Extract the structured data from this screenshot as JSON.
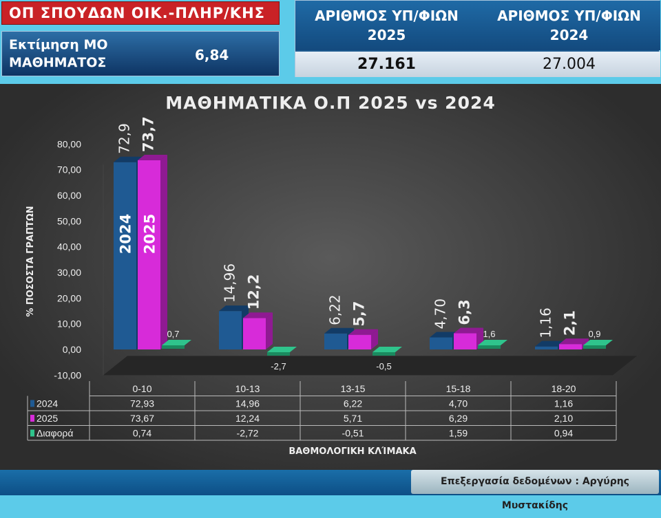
{
  "header": {
    "program": "ΟΠ ΣΠΟΥΔΩΝ ΟΙΚ.-ΠΛΗΡ/ΚΗΣ",
    "estimate_label_line1": "Εκτίμηση ΜΟ",
    "estimate_label_line2": "ΜΑΘΗΜΑΤΟΣ",
    "estimate_value": "6,84"
  },
  "counts": {
    "h2025_line1": "ΑΡΙΘΜΟΣ ΥΠ/ΦΙΩΝ",
    "h2025_line2": "2025",
    "h2024_line1": "ΑΡΙΘΜΟΣ ΥΠ/ΦΙΩΝ",
    "h2024_line2": "2024",
    "v2025": "27.161",
    "v2024": "27.004"
  },
  "footer": {
    "credit": "Επεξεργασία δεδομένων : Αργύρης Μυστακίδης"
  },
  "colors": {
    "s2024": "#1f5a93",
    "s2025": "#d72bd9",
    "diff": "#2fc48c"
  },
  "chart_data": {
    "type": "bar",
    "title": "ΜΑΘΗΜΑΤΙΚΑ Ο.Π 2025 vs 2024",
    "xlabel": "ΒΑΘΜΟΛΟΓΙΚΗ ΚΛΊΜΑΚΑ",
    "ylabel": "% ΠΟΣΟΣΤΑ ΓΡΑΠΤΩΝ",
    "ylim": [
      -10,
      80
    ],
    "yticks": [
      "-10,00",
      "0,00",
      "10,00",
      "20,00",
      "30,00",
      "40,00",
      "50,00",
      "60,00",
      "70,00",
      "80,00"
    ],
    "categories": [
      "0-10",
      "10-13",
      "13-15",
      "15-18",
      "18-20"
    ],
    "series": [
      {
        "name": "2024",
        "values": [
          72.93,
          14.96,
          6.22,
          4.7,
          1.16
        ],
        "table": [
          "72,93",
          "14,96",
          "6,22",
          "4,70",
          "1,16"
        ],
        "labels": [
          "72,9",
          "14,96",
          "6,22",
          "4,70",
          "1,16"
        ],
        "inbar_label": "2024"
      },
      {
        "name": "2025",
        "values": [
          73.67,
          12.24,
          5.71,
          6.29,
          2.1
        ],
        "table": [
          "73,67",
          "12,24",
          "5,71",
          "6,29",
          "2,10"
        ],
        "labels": [
          "73,7",
          "12,2",
          "5,7",
          "6,3",
          "2,1"
        ],
        "inbar_label": "2025"
      },
      {
        "name": "Διαφορά",
        "values": [
          0.74,
          -2.72,
          -0.51,
          1.59,
          0.94
        ],
        "table": [
          "0,74",
          "-2,72",
          "-0,51",
          "1,59",
          "0,94"
        ],
        "labels": [
          "0,7",
          "-2,7",
          "-0,5",
          "1,6",
          "0,9"
        ]
      }
    ],
    "grid": false,
    "legend": "data-table"
  }
}
